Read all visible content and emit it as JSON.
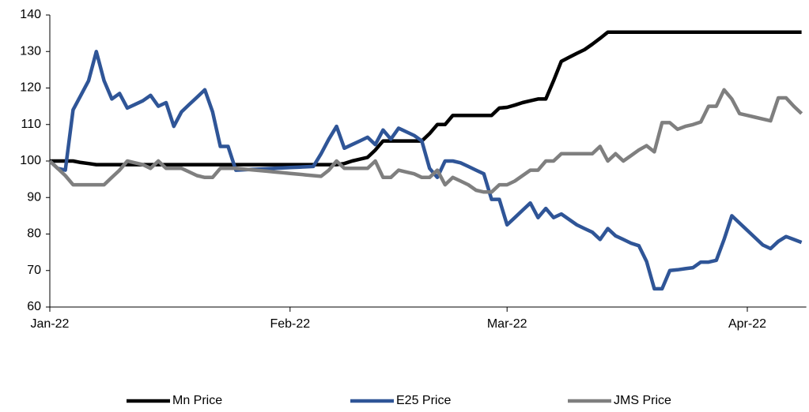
{
  "chart_data": {
    "type": "line",
    "categories": [
      "Jan-22",
      null,
      null,
      null,
      null,
      null,
      null,
      null,
      null,
      null,
      null,
      null,
      null,
      null,
      null,
      null,
      null,
      null,
      null,
      null,
      null,
      null,
      null,
      null,
      null,
      null,
      null,
      null,
      null,
      null,
      null,
      "Feb-22",
      null,
      null,
      null,
      null,
      null,
      null,
      null,
      null,
      null,
      null,
      null,
      null,
      null,
      null,
      null,
      null,
      null,
      null,
      null,
      null,
      null,
      null,
      null,
      null,
      null,
      null,
      null,
      "Mar-22",
      null,
      null,
      null,
      null,
      null,
      null,
      null,
      null,
      null,
      null,
      null,
      null,
      null,
      null,
      null,
      null,
      null,
      null,
      null,
      null,
      null,
      null,
      null,
      null,
      null,
      null,
      null,
      null,
      null,
      null,
      "Apr-22",
      null,
      null,
      null,
      null,
      null,
      null,
      null
    ],
    "series": [
      {
        "name": "Mn Price",
        "color": "#000000",
        "values": [
          100,
          100,
          100,
          100,
          99.6,
          99.3,
          99,
          99,
          99,
          99,
          99,
          99,
          99,
          99,
          99,
          99,
          99,
          99,
          99,
          99,
          99,
          99,
          99,
          99,
          99,
          99,
          99,
          99,
          99,
          99,
          99,
          99,
          99,
          99,
          99,
          99,
          99,
          99,
          99.3,
          100,
          100.5,
          101,
          103,
          105.5,
          105.5,
          105.5,
          105.5,
          105.5,
          105.5,
          107.5,
          110,
          110,
          112.5,
          112.5,
          112.5,
          112.5,
          112.5,
          112.5,
          114.5,
          114.7,
          115.3,
          116,
          116.5,
          117,
          117,
          122,
          127.3,
          128.4,
          129.5,
          130.5,
          132,
          133.6,
          135.3,
          135.3,
          135.3,
          135.3,
          135.3,
          135.3,
          135.3,
          135.3,
          135.3,
          135.3,
          135.3,
          135.3,
          135.3,
          135.3,
          135.3,
          135.3,
          135.3,
          135.3,
          135.3,
          135.3,
          135.3,
          135.3,
          135.3,
          135.3,
          135.3,
          135.3
        ]
      },
      {
        "name": "E25 Price",
        "color": "#2f5597",
        "values": [
          100,
          98,
          97.5,
          114,
          118,
          122,
          130,
          122,
          117,
          118.5,
          114.5,
          115.5,
          116.5,
          118,
          115,
          116,
          109.5,
          113.5,
          115.5,
          117.5,
          119.5,
          113.5,
          104,
          104,
          97.5,
          97.6,
          97.7,
          97.8,
          97.9,
          98,
          98.1,
          98.2,
          98.3,
          98.4,
          98.5,
          102,
          106,
          109.5,
          103.5,
          104.5,
          105.5,
          106.5,
          104.5,
          108.5,
          106,
          109,
          108,
          107,
          105.5,
          98,
          95.5,
          100,
          100,
          99.5,
          98.5,
          97.5,
          96.5,
          89.5,
          89.5,
          82.5,
          84.5,
          86.5,
          88.5,
          84.5,
          87,
          84.5,
          85.5,
          84,
          82.5,
          81.5,
          80.5,
          78.5,
          81.5,
          79.5,
          78.5,
          77.5,
          76.8,
          72.5,
          65,
          65,
          70,
          70.2,
          70.5,
          70.8,
          72.3,
          72.3,
          72.8,
          78.5,
          85,
          83,
          81,
          79,
          77,
          76,
          78,
          79.3,
          78.5,
          77.7
        ]
      },
      {
        "name": "JMS Price",
        "color": "#7f7f7f",
        "values": [
          100,
          98,
          96,
          93.5,
          93.5,
          93.5,
          93.5,
          93.5,
          95.5,
          97.5,
          100,
          99.5,
          99,
          98,
          100,
          98,
          98,
          98,
          97,
          96,
          95.5,
          95.5,
          98,
          98,
          98,
          97.8,
          97.6,
          97.4,
          97.2,
          97,
          96.8,
          96.6,
          96.4,
          96.2,
          96,
          95.8,
          97.5,
          100,
          98,
          98,
          98,
          98,
          100,
          95.5,
          95.5,
          97.5,
          97,
          96.5,
          95.5,
          95.5,
          97.5,
          93.5,
          95.5,
          94.5,
          93.5,
          92,
          91.5,
          91.5,
          93.5,
          93.5,
          94.5,
          96,
          97.5,
          97.5,
          100,
          100,
          102,
          102,
          102,
          102,
          102,
          104,
          100,
          102,
          100,
          101.5,
          103,
          104.2,
          102.5,
          110.5,
          110.5,
          108.7,
          109.5,
          110,
          110.7,
          115,
          115,
          119.5,
          117,
          113,
          112.5,
          112,
          111.5,
          111,
          117.3,
          117.3,
          115,
          113
        ]
      }
    ],
    "ylim": [
      60,
      140
    ],
    "yticks": [
      60,
      70,
      80,
      90,
      100,
      110,
      120,
      130,
      140
    ],
    "grid": false,
    "legend": "bottom"
  }
}
